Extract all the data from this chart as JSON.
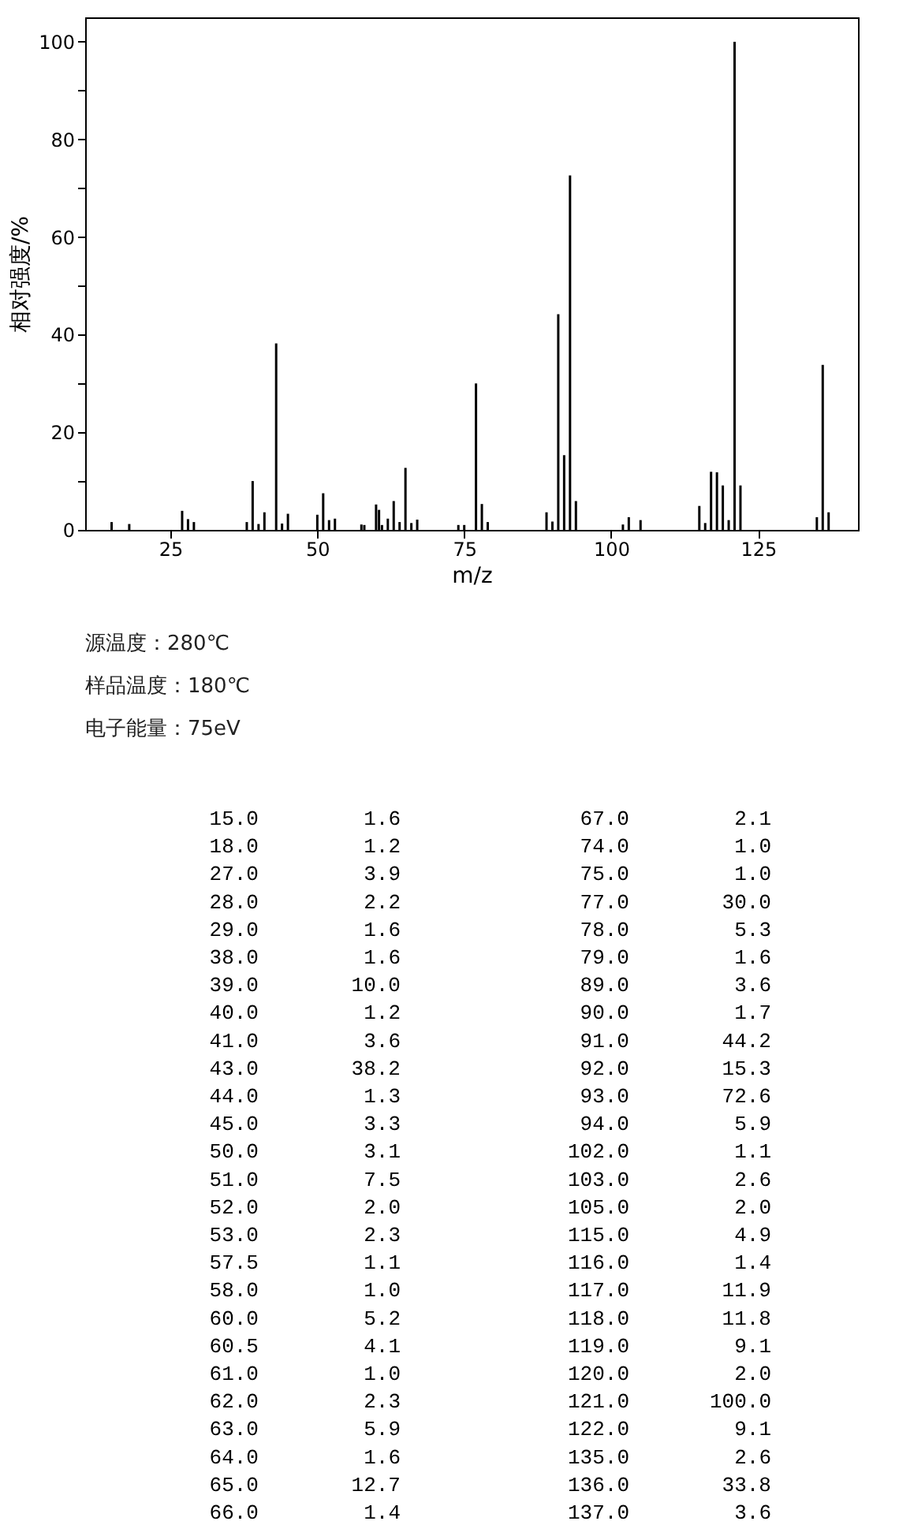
{
  "chart_data": [
    {
      "type": "bar",
      "xlabel": "m/z",
      "ylabel": "相对强度/%",
      "x": [
        15.0,
        18.0,
        27.0,
        28.0,
        29.0,
        38.0,
        39.0,
        40.0,
        41.0,
        43.0,
        44.0,
        45.0,
        50.0,
        51.0,
        52.0,
        53.0,
        57.5,
        58.0,
        60.0,
        60.5,
        61.0,
        62.0,
        63.0,
        64.0,
        65.0,
        66.0,
        67.0,
        74.0,
        75.0,
        77.0,
        78.0,
        79.0,
        89.0,
        90.0,
        91.0,
        92.0,
        93.0,
        94.0,
        102.0,
        103.0,
        105.0,
        115.0,
        116.0,
        117.0,
        118.0,
        119.0,
        120.0,
        121.0,
        122.0,
        135.0,
        136.0,
        137.0
      ],
      "values": [
        1.6,
        1.2,
        3.9,
        2.2,
        1.6,
        1.6,
        10.0,
        1.2,
        3.6,
        38.2,
        1.3,
        3.3,
        3.1,
        7.5,
        2.0,
        2.3,
        1.1,
        1.0,
        5.2,
        4.1,
        1.0,
        2.3,
        5.9,
        1.6,
        12.7,
        1.4,
        2.1,
        1.0,
        1.0,
        30.0,
        5.3,
        1.6,
        3.6,
        1.7,
        44.2,
        15.3,
        72.6,
        5.9,
        1.1,
        2.6,
        2.0,
        4.9,
        1.4,
        11.9,
        11.8,
        9.1,
        2.0,
        100.0,
        9.1,
        2.6,
        33.8,
        3.6
      ],
      "color": "#000000",
      "xlim": [
        10.5,
        142
      ],
      "ylim": [
        0,
        105
      ],
      "xticks": [
        25,
        50,
        75,
        100,
        125
      ],
      "yticks": [
        0,
        {
          "value": 10,
          "label": null
        },
        20,
        {
          "value": 30,
          "label": null
        },
        40,
        {
          "value": 50,
          "label": null
        },
        60,
        {
          "value": 70,
          "label": null
        },
        80,
        {
          "value": 90,
          "label": null
        },
        100
      ],
      "grid": false,
      "annotations": [
        "源温度：280℃",
        "样品温度：180℃",
        "电子能量：75eV"
      ]
    },
    {
      "type": "other",
      "categories": [
        "15.0",
        "18.0",
        "27.0",
        "28.0",
        "29.0",
        "38.0",
        "39.0",
        "40.0",
        "41.0",
        "43.0",
        "44.0",
        "45.0",
        "50.0",
        "51.0",
        "52.0",
        "53.0",
        "57.5",
        "58.0",
        "60.0",
        "60.5",
        "61.0",
        "62.0",
        "63.0",
        "64.0",
        "65.0",
        "66.0",
        "67.0",
        "74.0",
        "75.0",
        "77.0",
        "78.0",
        "79.0",
        "89.0",
        "90.0",
        "91.0",
        "92.0",
        "93.0",
        "94.0",
        "102.0",
        "103.0",
        "105.0",
        "115.0",
        "116.0",
        "117.0",
        "118.0",
        "119.0",
        "120.0",
        "121.0",
        "122.0",
        "135.0",
        "136.0",
        "137.0"
      ],
      "values": [
        1.6,
        1.2,
        3.9,
        2.2,
        1.6,
        1.6,
        10.0,
        1.2,
        3.6,
        38.2,
        1.3,
        3.3,
        3.1,
        7.5,
        2.0,
        2.3,
        1.1,
        1.0,
        5.2,
        4.1,
        1.0,
        2.3,
        5.9,
        1.6,
        12.7,
        1.4,
        2.1,
        1.0,
        1.0,
        30.0,
        5.3,
        1.6,
        3.6,
        1.7,
        44.2,
        15.3,
        72.6,
        5.9,
        1.1,
        2.6,
        2.0,
        4.9,
        1.4,
        11.9,
        11.8,
        9.1,
        2.0,
        100.0,
        9.1,
        2.6,
        33.8,
        3.6
      ],
      "value_labels": [
        "1.6",
        "1.2",
        "3.9",
        "2.2",
        "1.6",
        "1.6",
        "10.0",
        "1.2",
        "3.6",
        "38.2",
        "1.3",
        "3.3",
        "3.1",
        "7.5",
        "2.0",
        "2.3",
        "1.1",
        "1.0",
        "5.2",
        "4.1",
        "1.0",
        "2.3",
        "5.9",
        "1.6",
        "12.7",
        "1.4",
        "2.1",
        "1.0",
        "1.0",
        "30.0",
        "5.3",
        "1.6",
        "3.6",
        "1.7",
        "44.2",
        "15.3",
        "72.6",
        "5.9",
        "1.1",
        "2.6",
        "2.0",
        "4.9",
        "1.4",
        "11.9",
        "11.8",
        "9.1",
        "2.0",
        "100.0",
        "9.1",
        "2.6",
        "33.8",
        "3.6"
      ]
    }
  ]
}
